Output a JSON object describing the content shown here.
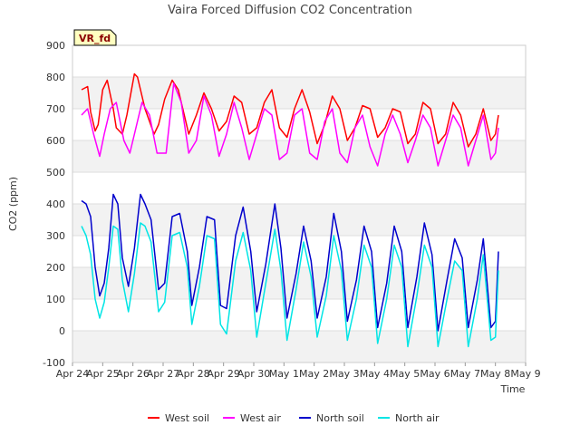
{
  "chart_data": {
    "type": "line",
    "title": "Vaira Forced Diffusion CO2 Concentration",
    "badge": "VR_fd",
    "xlabel": "Time",
    "ylabel": "CO2 (ppm)",
    "ylim": [
      -100,
      900
    ],
    "yticks": [
      -100,
      0,
      100,
      200,
      300,
      400,
      500,
      600,
      700,
      800,
      900
    ],
    "xlim": [
      0,
      15
    ],
    "xticks": [
      "Apr 24",
      "Apr 25",
      "Apr 26",
      "Apr 27",
      "Apr 28",
      "Apr 29",
      "Apr 30",
      "May 1",
      "May 2",
      "May 3",
      "May 4",
      "May 5",
      "May 6",
      "May 7",
      "May 8",
      "May 9"
    ],
    "grid_bands": true,
    "legend_position": "bottom-center",
    "series": [
      {
        "name": "West soil",
        "color": "#ff0000",
        "x": [
          0.3,
          0.5,
          0.6,
          0.75,
          0.85,
          1.0,
          1.15,
          1.35,
          1.45,
          1.65,
          1.8,
          2.05,
          2.15,
          2.4,
          2.7,
          2.85,
          3.05,
          3.3,
          3.5,
          3.75,
          3.85,
          4.1,
          4.35,
          4.6,
          4.85,
          5.1,
          5.35,
          5.6,
          5.85,
          6.1,
          6.35,
          6.6,
          6.85,
          7.1,
          7.35,
          7.6,
          7.85,
          8.1,
          8.35,
          8.6,
          8.85,
          9.1,
          9.35,
          9.6,
          9.85,
          10.1,
          10.35,
          10.6,
          10.85,
          11.1,
          11.35,
          11.6,
          11.85,
          12.1,
          12.35,
          12.6,
          12.85,
          13.1,
          13.35,
          13.6,
          13.85,
          14.0,
          14.1
        ],
        "y": [
          760,
          770,
          690,
          630,
          650,
          760,
          790,
          700,
          640,
          620,
          680,
          810,
          800,
          700,
          620,
          650,
          730,
          790,
          760,
          660,
          620,
          680,
          750,
          700,
          630,
          660,
          740,
          720,
          620,
          640,
          720,
          760,
          640,
          610,
          700,
          760,
          690,
          590,
          650,
          740,
          700,
          600,
          640,
          710,
          700,
          610,
          640,
          700,
          690,
          590,
          620,
          720,
          700,
          590,
          620,
          720,
          680,
          580,
          620,
          700,
          600,
          620,
          680
        ]
      },
      {
        "name": "West air",
        "color": "#ff00ff",
        "x": [
          0.3,
          0.5,
          0.7,
          0.9,
          1.05,
          1.25,
          1.45,
          1.7,
          1.9,
          2.1,
          2.3,
          2.55,
          2.8,
          3.1,
          3.35,
          3.6,
          3.85,
          4.1,
          4.35,
          4.6,
          4.85,
          5.1,
          5.35,
          5.6,
          5.85,
          6.1,
          6.35,
          6.6,
          6.85,
          7.1,
          7.35,
          7.6,
          7.85,
          8.1,
          8.35,
          8.6,
          8.85,
          9.1,
          9.35,
          9.6,
          9.85,
          10.1,
          10.35,
          10.6,
          10.85,
          11.1,
          11.35,
          11.6,
          11.85,
          12.1,
          12.35,
          12.6,
          12.85,
          13.1,
          13.35,
          13.6,
          13.85,
          14.0,
          14.1
        ],
        "y": [
          680,
          700,
          620,
          550,
          620,
          700,
          720,
          600,
          560,
          640,
          720,
          680,
          560,
          560,
          780,
          720,
          560,
          600,
          740,
          680,
          550,
          620,
          720,
          640,
          540,
          620,
          700,
          680,
          540,
          560,
          680,
          700,
          560,
          540,
          660,
          700,
          560,
          530,
          640,
          680,
          580,
          520,
          620,
          680,
          620,
          530,
          600,
          680,
          640,
          520,
          600,
          680,
          640,
          520,
          600,
          680,
          540,
          560,
          640
        ]
      },
      {
        "name": "North soil",
        "color": "#0000cc",
        "x": [
          0.3,
          0.45,
          0.6,
          0.75,
          0.9,
          1.05,
          1.2,
          1.35,
          1.5,
          1.65,
          1.85,
          2.05,
          2.25,
          2.4,
          2.6,
          2.85,
          3.05,
          3.3,
          3.55,
          3.8,
          3.95,
          4.2,
          4.45,
          4.7,
          4.9,
          5.1,
          5.4,
          5.65,
          5.9,
          6.1,
          6.4,
          6.7,
          6.9,
          7.1,
          7.4,
          7.65,
          7.9,
          8.1,
          8.4,
          8.65,
          8.9,
          9.1,
          9.4,
          9.65,
          9.9,
          10.1,
          10.4,
          10.65,
          10.9,
          11.1,
          11.4,
          11.65,
          11.9,
          12.1,
          12.4,
          12.65,
          12.9,
          13.1,
          13.4,
          13.6,
          13.85,
          14.0,
          14.1
        ],
        "y": [
          410,
          400,
          360,
          200,
          110,
          150,
          260,
          430,
          400,
          230,
          140,
          260,
          430,
          400,
          350,
          130,
          150,
          360,
          370,
          250,
          80,
          200,
          360,
          350,
          80,
          70,
          300,
          390,
          250,
          60,
          210,
          400,
          260,
          40,
          180,
          330,
          220,
          40,
          170,
          370,
          250,
          30,
          160,
          330,
          250,
          10,
          150,
          330,
          250,
          10,
          170,
          340,
          240,
          0,
          160,
          290,
          230,
          10,
          160,
          290,
          10,
          30,
          250
        ]
      },
      {
        "name": "North air",
        "color": "#00e5e5",
        "x": [
          0.3,
          0.45,
          0.6,
          0.75,
          0.9,
          1.05,
          1.2,
          1.35,
          1.5,
          1.65,
          1.85,
          2.05,
          2.25,
          2.4,
          2.6,
          2.85,
          3.05,
          3.3,
          3.55,
          3.8,
          3.95,
          4.2,
          4.45,
          4.7,
          4.9,
          5.1,
          5.4,
          5.65,
          5.9,
          6.1,
          6.4,
          6.7,
          6.9,
          7.1,
          7.4,
          7.65,
          7.9,
          8.1,
          8.4,
          8.65,
          8.9,
          9.1,
          9.4,
          9.65,
          9.9,
          10.1,
          10.4,
          10.65,
          10.9,
          11.1,
          11.4,
          11.65,
          11.9,
          12.1,
          12.4,
          12.65,
          12.9,
          13.1,
          13.4,
          13.6,
          13.85,
          14.0,
          14.1
        ],
        "y": [
          330,
          300,
          240,
          100,
          40,
          90,
          200,
          330,
          320,
          160,
          60,
          180,
          340,
          330,
          280,
          60,
          90,
          300,
          310,
          200,
          20,
          140,
          300,
          290,
          20,
          -10,
          220,
          310,
          190,
          -20,
          150,
          320,
          190,
          -30,
          130,
          280,
          170,
          -20,
          110,
          300,
          190,
          -30,
          100,
          270,
          200,
          -40,
          100,
          270,
          200,
          -50,
          110,
          270,
          200,
          -50,
          100,
          220,
          190,
          -50,
          100,
          240,
          -30,
          -20,
          190
        ]
      }
    ]
  }
}
